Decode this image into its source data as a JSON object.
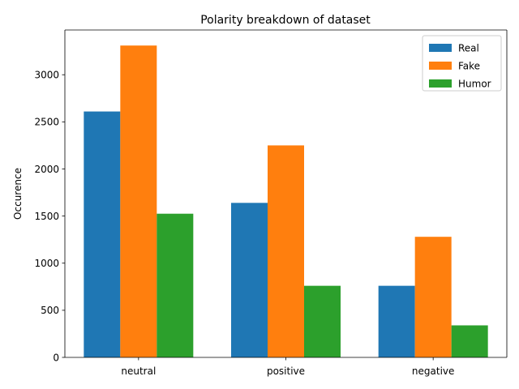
{
  "chart_data": {
    "type": "bar",
    "title": "Polarity breakdown of dataset",
    "xlabel": "",
    "ylabel": "Occurence",
    "categories": [
      "neutral",
      "positive",
      "negative"
    ],
    "series": [
      {
        "name": "Real",
        "color": "#1f77b4",
        "values": [
          2610,
          1640,
          760
        ]
      },
      {
        "name": "Fake",
        "color": "#ff7f0e",
        "values": [
          3310,
          2250,
          1280
        ]
      },
      {
        "name": "Humor",
        "color": "#2ca02c",
        "values": [
          1525,
          760,
          340
        ]
      }
    ],
    "ylim": [
      0,
      3475
    ],
    "yticks": [
      0,
      500,
      1000,
      1500,
      2000,
      2500,
      3000
    ],
    "grid": false,
    "legend_position": "top-right"
  }
}
